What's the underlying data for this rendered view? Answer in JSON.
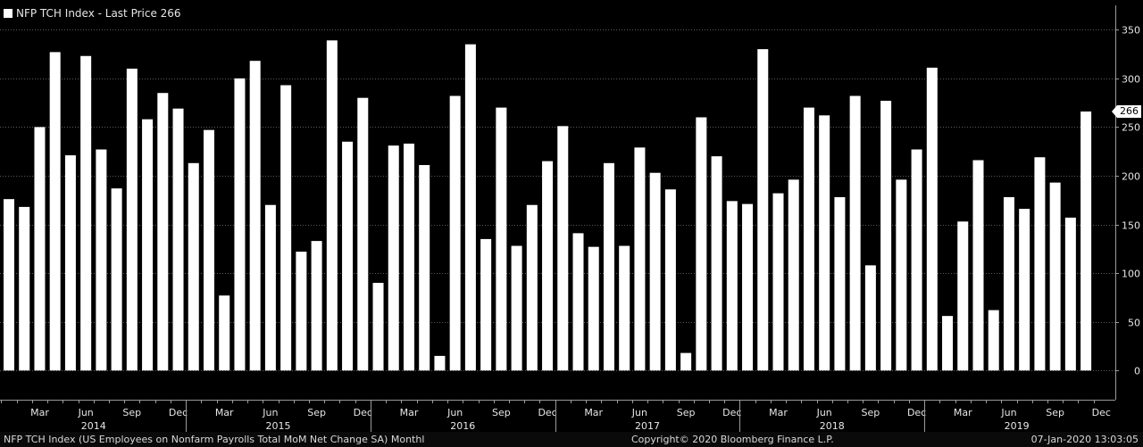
{
  "legend": {
    "label": "NFP TCH Index - Last Price 266"
  },
  "last_price_label": "266",
  "footer": {
    "description": "NFP TCH Index (US Employees on Nonfarm Payrolls Total MoM Net Change SA)  Monthl",
    "copyright": "Copyright© 2020 Bloomberg Finance L.P.",
    "timestamp": "07-Jan-2020 13:03:05"
  },
  "colors": {
    "background": "#000000",
    "bar": "#ffffff",
    "grid": "#5a5a5a",
    "axis": "#9a9a9a"
  },
  "chart_data": {
    "type": "bar",
    "title": "NFP TCH Index - Last Price 266",
    "series": [
      {
        "name": "NFP TCH Index",
        "values": [
          176,
          168,
          250,
          327,
          221,
          323,
          227,
          187,
          310,
          258,
          285,
          269,
          213,
          247,
          77,
          300,
          318,
          170,
          293,
          122,
          133,
          339,
          235,
          280,
          90,
          231,
          233,
          211,
          15,
          282,
          335,
          135,
          270,
          128,
          170,
          215,
          251,
          141,
          127,
          213,
          128,
          229,
          203,
          186,
          18,
          260,
          220,
          174,
          171,
          330,
          182,
          196,
          270,
          262,
          178,
          282,
          108,
          277,
          196,
          227,
          311,
          56,
          153,
          216,
          62,
          178,
          166,
          219,
          193,
          157,
          266
        ]
      }
    ],
    "x_month_labels": [
      "Mar",
      "Jun",
      "Sep",
      "Dec",
      "Mar",
      "Jun",
      "Sep",
      "Dec",
      "Mar",
      "Jun",
      "Sep",
      "Dec",
      "Mar",
      "Jun",
      "Sep",
      "Dec",
      "Mar",
      "Jun",
      "Sep",
      "Dec",
      "Mar",
      "Jun",
      "Sep",
      "Dec"
    ],
    "x_year_labels": [
      "2014",
      "2015",
      "2016",
      "2017",
      "2018",
      "2019"
    ],
    "y_ticks": [
      0,
      50,
      100,
      150,
      200,
      250,
      300,
      350
    ],
    "ylim": [
      -30,
      375
    ],
    "grid": true,
    "last_value": 266
  }
}
